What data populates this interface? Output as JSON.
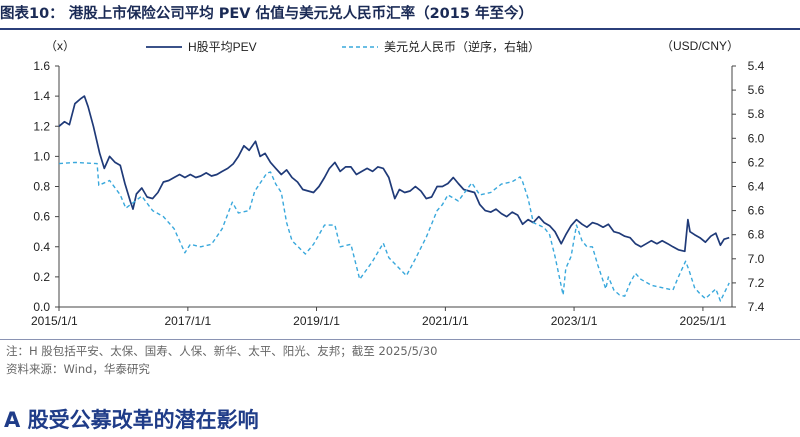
{
  "figure": {
    "title": "图表10：  港股上市保险公司平均 PEV 估值与美元兑人民币汇率（2015 年至今）",
    "note": "注：H 股包括平安、太保、国寿、人保、新华、太平、阳光、友邦；截至 2025/5/30",
    "source": "资料来源：Wind，华泰研究"
  },
  "section": {
    "heading": "A 股受公募改革的潜在影响"
  },
  "colors": {
    "pev": "#1f3a78",
    "fx": "#39a8dc",
    "title": "#1a2a55",
    "heading": "#1f3c88"
  },
  "chart_data": {
    "type": "line",
    "left_axis_unit": "（x）",
    "right_axis_unit": "（USD/CNY）",
    "ylim_left": [
      0.0,
      1.6
    ],
    "yticks_left": [
      "0.0",
      "0.2",
      "0.4",
      "0.6",
      "0.8",
      "1.0",
      "1.2",
      "1.4",
      "1.6"
    ],
    "ylim_right": [
      5.4,
      7.4
    ],
    "right_axis_inverted": true,
    "yticks_right": [
      "5.4",
      "5.6",
      "5.8",
      "6.0",
      "6.2",
      "6.4",
      "6.6",
      "6.8",
      "7.0",
      "7.2",
      "7.4"
    ],
    "xlim": [
      "2015-01-01",
      "2025-06-15"
    ],
    "xticks": [
      {
        "date": "2015-01-01",
        "label": "2015/1/1"
      },
      {
        "date": "2017-01-01",
        "label": "2017/1/1"
      },
      {
        "date": "2019-01-01",
        "label": "2019/1/1"
      },
      {
        "date": "2021-01-01",
        "label": "2021/1/1"
      },
      {
        "date": "2023-01-01",
        "label": "2023/1/1"
      },
      {
        "date": "2025-01-01",
        "label": "2025/1/1"
      }
    ],
    "legend_position": "top",
    "series": [
      {
        "name": "H股平均PEV",
        "axis": "left",
        "style": "solid",
        "points": [
          [
            "2015-01-01",
            1.2
          ],
          [
            "2015-02-01",
            1.23
          ],
          [
            "2015-03-01",
            1.21
          ],
          [
            "2015-04-01",
            1.35
          ],
          [
            "2015-05-01",
            1.38
          ],
          [
            "2015-05-25",
            1.4
          ],
          [
            "2015-06-15",
            1.33
          ],
          [
            "2015-07-15",
            1.2
          ],
          [
            "2015-08-20",
            1.02
          ],
          [
            "2015-09-15",
            0.92
          ],
          [
            "2015-10-15",
            1.0
          ],
          [
            "2015-11-15",
            0.96
          ],
          [
            "2015-12-15",
            0.94
          ],
          [
            "2016-01-10",
            0.82
          ],
          [
            "2016-02-10",
            0.7
          ],
          [
            "2016-02-25",
            0.65
          ],
          [
            "2016-03-15",
            0.75
          ],
          [
            "2016-04-15",
            0.79
          ],
          [
            "2016-05-15",
            0.73
          ],
          [
            "2016-06-15",
            0.72
          ],
          [
            "2016-07-15",
            0.76
          ],
          [
            "2016-08-15",
            0.83
          ],
          [
            "2016-09-15",
            0.84
          ],
          [
            "2016-10-15",
            0.86
          ],
          [
            "2016-11-15",
            0.88
          ],
          [
            "2016-12-15",
            0.86
          ],
          [
            "2017-01-15",
            0.88
          ],
          [
            "2017-02-15",
            0.86
          ],
          [
            "2017-03-15",
            0.87
          ],
          [
            "2017-04-15",
            0.89
          ],
          [
            "2017-05-15",
            0.87
          ],
          [
            "2017-06-15",
            0.88
          ],
          [
            "2017-07-15",
            0.9
          ],
          [
            "2017-08-15",
            0.92
          ],
          [
            "2017-09-15",
            0.95
          ],
          [
            "2017-10-15",
            1.0
          ],
          [
            "2017-11-15",
            1.07
          ],
          [
            "2017-12-15",
            1.04
          ],
          [
            "2018-01-20",
            1.1
          ],
          [
            "2018-02-15",
            1.0
          ],
          [
            "2018-03-15",
            1.02
          ],
          [
            "2018-04-15",
            0.96
          ],
          [
            "2018-05-15",
            0.92
          ],
          [
            "2018-06-15",
            0.88
          ],
          [
            "2018-07-15",
            0.91
          ],
          [
            "2018-08-15",
            0.86
          ],
          [
            "2018-09-15",
            0.83
          ],
          [
            "2018-10-15",
            0.78
          ],
          [
            "2018-11-15",
            0.77
          ],
          [
            "2018-12-15",
            0.76
          ],
          [
            "2019-01-15",
            0.8
          ],
          [
            "2019-02-15",
            0.86
          ],
          [
            "2019-03-15",
            0.92
          ],
          [
            "2019-04-15",
            0.96
          ],
          [
            "2019-05-15",
            0.9
          ],
          [
            "2019-06-15",
            0.93
          ],
          [
            "2019-07-15",
            0.93
          ],
          [
            "2019-08-15",
            0.88
          ],
          [
            "2019-09-15",
            0.9
          ],
          [
            "2019-10-15",
            0.92
          ],
          [
            "2019-11-15",
            0.9
          ],
          [
            "2019-12-15",
            0.93
          ],
          [
            "2020-01-15",
            0.92
          ],
          [
            "2020-02-15",
            0.86
          ],
          [
            "2020-03-20",
            0.72
          ],
          [
            "2020-04-15",
            0.78
          ],
          [
            "2020-05-15",
            0.76
          ],
          [
            "2020-06-15",
            0.77
          ],
          [
            "2020-07-15",
            0.8
          ],
          [
            "2020-08-15",
            0.77
          ],
          [
            "2020-09-15",
            0.72
          ],
          [
            "2020-10-15",
            0.73
          ],
          [
            "2020-11-15",
            0.8
          ],
          [
            "2020-12-15",
            0.8
          ],
          [
            "2021-01-15",
            0.82
          ],
          [
            "2021-02-15",
            0.86
          ],
          [
            "2021-03-15",
            0.82
          ],
          [
            "2021-04-15",
            0.78
          ],
          [
            "2021-05-15",
            0.77
          ],
          [
            "2021-06-15",
            0.76
          ],
          [
            "2021-07-15",
            0.68
          ],
          [
            "2021-08-15",
            0.64
          ],
          [
            "2021-09-15",
            0.63
          ],
          [
            "2021-10-15",
            0.65
          ],
          [
            "2021-11-15",
            0.62
          ],
          [
            "2021-12-15",
            0.6
          ],
          [
            "2022-01-15",
            0.63
          ],
          [
            "2022-02-15",
            0.61
          ],
          [
            "2022-03-15",
            0.55
          ],
          [
            "2022-04-15",
            0.58
          ],
          [
            "2022-05-15",
            0.56
          ],
          [
            "2022-06-15",
            0.6
          ],
          [
            "2022-07-15",
            0.56
          ],
          [
            "2022-08-15",
            0.54
          ],
          [
            "2022-09-15",
            0.5
          ],
          [
            "2022-10-20",
            0.42
          ],
          [
            "2022-11-15",
            0.48
          ],
          [
            "2022-12-15",
            0.54
          ],
          [
            "2023-01-15",
            0.58
          ],
          [
            "2023-02-15",
            0.55
          ],
          [
            "2023-03-15",
            0.53
          ],
          [
            "2023-04-15",
            0.56
          ],
          [
            "2023-05-15",
            0.55
          ],
          [
            "2023-06-15",
            0.53
          ],
          [
            "2023-07-15",
            0.55
          ],
          [
            "2023-08-15",
            0.5
          ],
          [
            "2023-09-15",
            0.49
          ],
          [
            "2023-10-15",
            0.47
          ],
          [
            "2023-11-15",
            0.46
          ],
          [
            "2023-12-15",
            0.42
          ],
          [
            "2024-01-15",
            0.4
          ],
          [
            "2024-02-15",
            0.42
          ],
          [
            "2024-03-15",
            0.44
          ],
          [
            "2024-04-15",
            0.42
          ],
          [
            "2024-05-15",
            0.44
          ],
          [
            "2024-06-15",
            0.42
          ],
          [
            "2024-07-15",
            0.4
          ],
          [
            "2024-08-15",
            0.38
          ],
          [
            "2024-09-20",
            0.37
          ],
          [
            "2024-10-08",
            0.58
          ],
          [
            "2024-10-20",
            0.5
          ],
          [
            "2024-11-15",
            0.48
          ],
          [
            "2024-12-15",
            0.46
          ],
          [
            "2025-01-15",
            0.43
          ],
          [
            "2025-02-15",
            0.47
          ],
          [
            "2025-03-15",
            0.49
          ],
          [
            "2025-04-10",
            0.41
          ],
          [
            "2025-05-01",
            0.45
          ],
          [
            "2025-05-30",
            0.46
          ]
        ]
      },
      {
        "name": "美元兑人民币（逆序，右轴）",
        "axis": "right",
        "style": "dashed",
        "points": [
          [
            "2015-01-01",
            6.21
          ],
          [
            "2015-04-01",
            6.2
          ],
          [
            "2015-08-05",
            6.21
          ],
          [
            "2015-08-15",
            6.39
          ],
          [
            "2015-10-15",
            6.35
          ],
          [
            "2015-12-15",
            6.47
          ],
          [
            "2016-01-15",
            6.58
          ],
          [
            "2016-04-15",
            6.48
          ],
          [
            "2016-06-15",
            6.6
          ],
          [
            "2016-08-15",
            6.65
          ],
          [
            "2016-10-15",
            6.75
          ],
          [
            "2016-12-15",
            6.95
          ],
          [
            "2017-01-15",
            6.88
          ],
          [
            "2017-03-15",
            6.9
          ],
          [
            "2017-05-15",
            6.88
          ],
          [
            "2017-07-15",
            6.75
          ],
          [
            "2017-09-10",
            6.53
          ],
          [
            "2017-10-15",
            6.62
          ],
          [
            "2017-12-15",
            6.6
          ],
          [
            "2018-01-15",
            6.44
          ],
          [
            "2018-03-25",
            6.29
          ],
          [
            "2018-04-15",
            6.28
          ],
          [
            "2018-05-15",
            6.38
          ],
          [
            "2018-06-15",
            6.45
          ],
          [
            "2018-07-15",
            6.7
          ],
          [
            "2018-08-15",
            6.85
          ],
          [
            "2018-10-30",
            6.96
          ],
          [
            "2018-12-15",
            6.88
          ],
          [
            "2019-02-15",
            6.72
          ],
          [
            "2019-04-15",
            6.72
          ],
          [
            "2019-05-15",
            6.9
          ],
          [
            "2019-07-15",
            6.88
          ],
          [
            "2019-09-03",
            7.17
          ],
          [
            "2019-11-15",
            7.02
          ],
          [
            "2020-01-15",
            6.87
          ],
          [
            "2020-02-15",
            6.99
          ],
          [
            "2020-05-25",
            7.14
          ],
          [
            "2020-07-15",
            7.0
          ],
          [
            "2020-09-15",
            6.82
          ],
          [
            "2020-11-15",
            6.6
          ],
          [
            "2020-12-15",
            6.55
          ],
          [
            "2021-01-15",
            6.47
          ],
          [
            "2021-03-15",
            6.52
          ],
          [
            "2021-05-31",
            6.37
          ],
          [
            "2021-07-15",
            6.47
          ],
          [
            "2021-09-15",
            6.45
          ],
          [
            "2021-11-15",
            6.38
          ],
          [
            "2022-01-15",
            6.36
          ],
          [
            "2022-03-01",
            6.32
          ],
          [
            "2022-03-15",
            6.36
          ],
          [
            "2022-04-15",
            6.5
          ],
          [
            "2022-05-15",
            6.7
          ],
          [
            "2022-07-15",
            6.74
          ],
          [
            "2022-08-15",
            6.8
          ],
          [
            "2022-09-15",
            6.98
          ],
          [
            "2022-10-31",
            7.3
          ],
          [
            "2022-11-15",
            7.08
          ],
          [
            "2022-12-15",
            6.98
          ],
          [
            "2023-01-15",
            6.72
          ],
          [
            "2023-02-15",
            6.85
          ],
          [
            "2023-03-15",
            6.9
          ],
          [
            "2023-04-15",
            6.9
          ],
          [
            "2023-05-15",
            7.05
          ],
          [
            "2023-06-30",
            7.25
          ],
          [
            "2023-07-15",
            7.15
          ],
          [
            "2023-08-15",
            7.26
          ],
          [
            "2023-09-15",
            7.3
          ],
          [
            "2023-10-15",
            7.31
          ],
          [
            "2023-11-15",
            7.2
          ],
          [
            "2023-12-15",
            7.12
          ],
          [
            "2024-01-15",
            7.17
          ],
          [
            "2024-03-15",
            7.22
          ],
          [
            "2024-05-15",
            7.24
          ],
          [
            "2024-07-15",
            7.26
          ],
          [
            "2024-08-15",
            7.15
          ],
          [
            "2024-09-25",
            7.02
          ],
          [
            "2024-10-15",
            7.1
          ],
          [
            "2024-11-15",
            7.24
          ],
          [
            "2024-12-15",
            7.29
          ],
          [
            "2025-01-15",
            7.33
          ],
          [
            "2025-03-15",
            7.25
          ],
          [
            "2025-04-10",
            7.35
          ],
          [
            "2025-05-30",
            7.2
          ]
        ]
      }
    ]
  }
}
